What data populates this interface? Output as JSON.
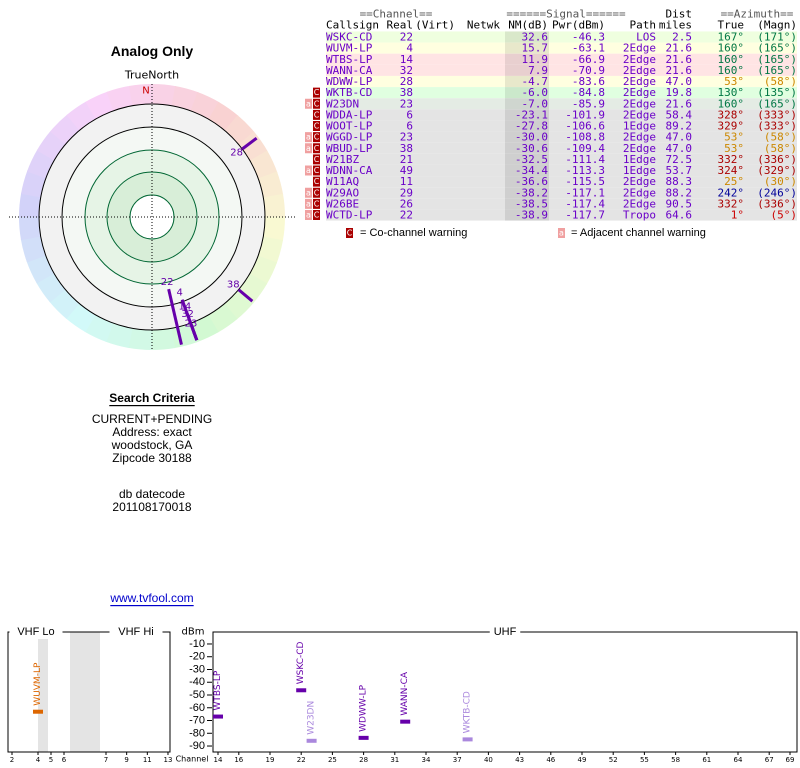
{
  "polar": {
    "title": "Analog Only",
    "north_label": "TrueNorth",
    "north_mark": "N",
    "markers": [
      {
        "label": "22",
        "azimuth": 167
      },
      {
        "label": "4",
        "azimuth": 160
      },
      {
        "label": "14",
        "azimuth": 160
      },
      {
        "label": "32",
        "azimuth": 160
      },
      {
        "label": "23",
        "azimuth": 160
      },
      {
        "label": "28",
        "azimuth": 53
      },
      {
        "label": "38",
        "azimuth": 130
      }
    ]
  },
  "search": {
    "title": "Search Criteria",
    "lines": [
      "CURRENT+PENDING",
      "Address: exact",
      "woodstock, GA",
      "Zipcode 30188"
    ],
    "db_label": "db datecode",
    "db_code": "201108170018",
    "link": "www.tvfool.com"
  },
  "table": {
    "groups": {
      "channel": "==Channel==",
      "signal": "======Signal======",
      "dist": "Dist",
      "azimuth": "==Azimuth=="
    },
    "columns": {
      "callsign": "Callsign",
      "real": "Real",
      "virt": "(Virt)",
      "netwk": "Netwk",
      "nm": "NM(dB)",
      "pwr": "Pwr(dBm)",
      "path": "Path",
      "dist": "miles",
      "az_true": "True",
      "az_mag": "(Magn)"
    },
    "rows": [
      {
        "callsign": "WSKC-CD",
        "real": "22",
        "nm": "32.6",
        "pwr": "-46.3",
        "path": "LOS",
        "dist": "2.5",
        "az_true": "167°",
        "az_mag": "(171°)",
        "bg": "#efffdf",
        "az_color": "#007744"
      },
      {
        "callsign": "WUVM-LP",
        "real": "4",
        "nm": "15.7",
        "pwr": "-63.1",
        "path": "2Edge",
        "dist": "21.6",
        "az_true": "160°",
        "az_mag": "(165°)",
        "bg": "#ffffe0",
        "az_color": "#007744"
      },
      {
        "callsign": "WTBS-LP",
        "real": "14",
        "nm": "11.9",
        "pwr": "-66.9",
        "path": "2Edge",
        "dist": "21.6",
        "az_true": "160°",
        "az_mag": "(165°)",
        "bg": "#ffe4e4",
        "az_color": "#007744"
      },
      {
        "callsign": "WANN-CA",
        "real": "32",
        "nm": "7.9",
        "pwr": "-70.9",
        "path": "2Edge",
        "dist": "21.6",
        "az_true": "160°",
        "az_mag": "(165°)",
        "bg": "#ffe4e4",
        "az_color": "#007744"
      },
      {
        "callsign": "WDWW-LP",
        "real": "28",
        "nm": "-4.7",
        "pwr": "-83.6",
        "path": "2Edge",
        "dist": "47.0",
        "az_true": "53°",
        "az_mag": "(58°)",
        "bg": "#ffffe0",
        "az_color": "#cc8800"
      },
      {
        "callsign": "WKTB-CD",
        "real": "38",
        "nm": "-6.0",
        "pwr": "-84.8",
        "path": "2Edge",
        "dist": "19.8",
        "az_true": "130°",
        "az_mag": "(135°)",
        "bg": "#e0ffe0",
        "az_color": "#007744",
        "warn": [
          "C"
        ]
      },
      {
        "callsign": "W23DN",
        "real": "23",
        "nm": "-7.0",
        "pwr": "-85.9",
        "path": "2Edge",
        "dist": "21.6",
        "az_true": "160°",
        "az_mag": "(165°)",
        "bg": "#e4ece4",
        "az_color": "#007744",
        "warn": [
          "a",
          "C"
        ]
      },
      {
        "callsign": "WDDA-LP",
        "real": "6",
        "nm": "-23.1",
        "pwr": "-101.9",
        "path": "2Edge",
        "dist": "58.4",
        "az_true": "328°",
        "az_mag": "(333°)",
        "bg": "#e4e4e4",
        "az_color": "#aa0000",
        "warn": [
          "C"
        ]
      },
      {
        "callsign": "WOOT-LP",
        "real": "6",
        "nm": "-27.8",
        "pwr": "-106.6",
        "path": "1Edge",
        "dist": "89.2",
        "az_true": "329°",
        "az_mag": "(333°)",
        "bg": "#e4e4e4",
        "az_color": "#aa0000",
        "warn": [
          "C"
        ]
      },
      {
        "callsign": "WGGD-LP",
        "real": "23",
        "nm": "-30.0",
        "pwr": "-108.8",
        "path": "2Edge",
        "dist": "47.0",
        "az_true": "53°",
        "az_mag": "(58°)",
        "bg": "#e4e4e4",
        "az_color": "#cc8800",
        "warn": [
          "a",
          "C"
        ]
      },
      {
        "callsign": "WBUD-LP",
        "real": "38",
        "nm": "-30.6",
        "pwr": "-109.4",
        "path": "2Edge",
        "dist": "47.0",
        "az_true": "53°",
        "az_mag": "(58°)",
        "bg": "#e4e4e4",
        "az_color": "#cc8800",
        "warn": [
          "a",
          "C"
        ]
      },
      {
        "callsign": "W21BZ",
        "real": "21",
        "nm": "-32.5",
        "pwr": "-111.4",
        "path": "1Edge",
        "dist": "72.5",
        "az_true": "332°",
        "az_mag": "(336°)",
        "bg": "#e4e4e4",
        "az_color": "#aa0000",
        "warn": [
          "C"
        ]
      },
      {
        "callsign": "WDNN-CA",
        "real": "49",
        "nm": "-34.4",
        "pwr": "-113.3",
        "path": "1Edge",
        "dist": "53.7",
        "az_true": "324°",
        "az_mag": "(329°)",
        "bg": "#e4e4e4",
        "az_color": "#aa0000",
        "warn": [
          "a",
          "C"
        ]
      },
      {
        "callsign": "W11AQ",
        "real": "11",
        "nm": "-36.6",
        "pwr": "-115.5",
        "path": "2Edge",
        "dist": "88.3",
        "az_true": "25°",
        "az_mag": "(30°)",
        "bg": "#e4e4e4",
        "az_color": "#cc8800",
        "warn": [
          "C"
        ]
      },
      {
        "callsign": "W29AO",
        "real": "29",
        "nm": "-38.2",
        "pwr": "-117.1",
        "path": "2Edge",
        "dist": "88.2",
        "az_true": "242°",
        "az_mag": "(246°)",
        "bg": "#e4e4e4",
        "az_color": "#000099",
        "warn": [
          "a",
          "C"
        ]
      },
      {
        "callsign": "W26BE",
        "real": "26",
        "nm": "-38.5",
        "pwr": "-117.4",
        "path": "2Edge",
        "dist": "90.5",
        "az_true": "332°",
        "az_mag": "(336°)",
        "bg": "#e4e4e4",
        "az_color": "#aa0000",
        "warn": [
          "a",
          "C"
        ]
      },
      {
        "callsign": "WCTD-LP",
        "real": "22",
        "nm": "-38.9",
        "pwr": "-117.7",
        "path": "Tropo",
        "dist": "64.6",
        "az_true": "1°",
        "az_mag": "(5°)",
        "bg": "#e4e4e4",
        "az_color": "#cc0000",
        "warn": [
          "a",
          "C"
        ]
      }
    ],
    "legend": [
      {
        "icon": "C",
        "text": "= Co-channel warning"
      },
      {
        "icon": "a",
        "text": "= Adjacent channel warning"
      }
    ]
  },
  "spectrum": {
    "bands": [
      "VHF Lo",
      "VHF Hi",
      "UHF"
    ],
    "y_label": "dBm",
    "x_label": "Channel",
    "ylim": [
      -5,
      -95
    ],
    "yticks": [
      -10,
      -20,
      -30,
      -40,
      -50,
      -60,
      -70,
      -80,
      -90
    ],
    "xticks": [
      2,
      4,
      5,
      6,
      7,
      9,
      11,
      13,
      14,
      16,
      19,
      22,
      25,
      28,
      31,
      34,
      37,
      40,
      43,
      46,
      49,
      52,
      55,
      58,
      61,
      64,
      67,
      69
    ],
    "stations": [
      {
        "name": "WUVM-LP",
        "channel": 4,
        "dbm": -63.1,
        "color": "#dd6600"
      },
      {
        "name": "WTBS-LP",
        "channel": 14,
        "dbm": -66.9,
        "color": "#6600aa"
      },
      {
        "name": "WSKC-CD",
        "channel": 22,
        "dbm": -46.3,
        "color": "#6600aa"
      },
      {
        "name": "W23DN",
        "channel": 23,
        "dbm": -85.9,
        "color": "#aa88dd"
      },
      {
        "name": "WDWW-LP",
        "channel": 28,
        "dbm": -83.6,
        "color": "#6600aa"
      },
      {
        "name": "WANN-CA",
        "channel": 32,
        "dbm": -70.9,
        "color": "#6600aa"
      },
      {
        "name": "WKTB-CD",
        "channel": 38,
        "dbm": -84.8,
        "color": "#aa88dd"
      }
    ]
  }
}
